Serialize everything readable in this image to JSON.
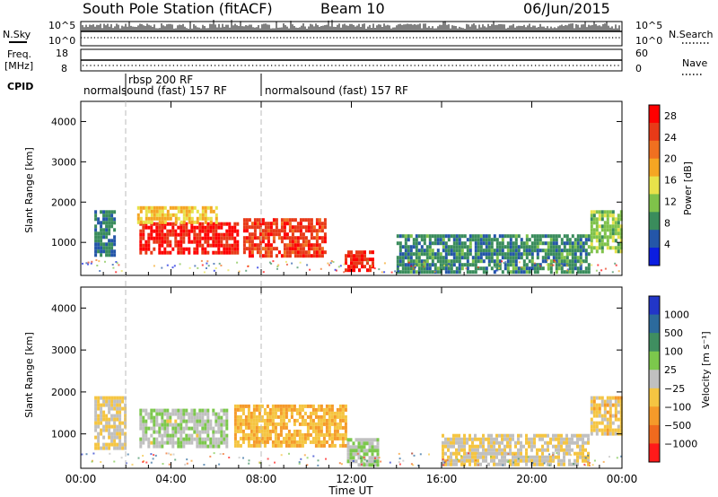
{
  "header": {
    "station": "South Pole Station (fitACF)",
    "beam": "Beam 10",
    "date": "06/Jun/2015"
  },
  "top_panels": {
    "nsky_label": "N.Sky",
    "nsearch_label": "N.Search",
    "nsky_ticks": [
      "10^5",
      "10^0"
    ],
    "nsky_right_ticks": [
      "10^5",
      "10^0"
    ],
    "freq_label_lines": [
      "Freq.",
      "[MHz]"
    ],
    "freq_ticks": [
      "18",
      "8"
    ],
    "nave_label": "Nave",
    "nave_ticks": [
      "60",
      "0"
    ],
    "cpid_label": "CPID",
    "cpid_entries": [
      {
        "text": "normalsound (fast) 157 RF",
        "start_hour": 0
      },
      {
        "text": "rbsp 200 RF",
        "start_hour": 2
      },
      {
        "text": "normalsound (fast) 157 RF",
        "start_hour": 8
      }
    ]
  },
  "time_axis": {
    "ticks": [
      "00:00",
      "04:00",
      "08:00",
      "12:00",
      "16:00",
      "20:00",
      "00:00"
    ],
    "label": "Time UT"
  },
  "colors": {
    "power": [
      "#0b1de0",
      "#2456a8",
      "#3a8c5c",
      "#7fc24a",
      "#e8e24a",
      "#f5a623",
      "#f07020",
      "#e83a18",
      "#ff0000"
    ],
    "velocity": [
      "#2236c8",
      "#2c6a9c",
      "#3f8e60",
      "#7cc84c",
      "#c0c0c0",
      "#f5c542",
      "#f59a2a",
      "#f06a1e",
      "#ff1a1a"
    ]
  },
  "chart_data": [
    {
      "type": "heatmap",
      "panel": "power",
      "ylabel": "Slant Range [km]",
      "yticks": [
        "1000",
        "2000",
        "3000",
        "4000"
      ],
      "ylim": [
        180,
        4500
      ],
      "xlim": [
        0,
        24
      ],
      "colorbar_label": "Power [dB]",
      "colorbar_ticks": [
        "4",
        "8",
        "12",
        "16",
        "20",
        "24",
        "28"
      ],
      "colorbar_range": [
        0,
        30
      ],
      "regions": [
        {
          "x": [
            2.6,
            7.0
          ],
          "y": [
            700,
            1500
          ],
          "value": 27
        },
        {
          "x": [
            7.2,
            10.8
          ],
          "y": [
            700,
            1600
          ],
          "value": 25
        },
        {
          "x": [
            2.5,
            6.0
          ],
          "y": [
            1500,
            1900
          ],
          "value": 17
        },
        {
          "x": [
            11.7,
            12.9
          ],
          "y": [
            300,
            800
          ],
          "value": 26
        },
        {
          "x": [
            14.0,
            22.5
          ],
          "y": [
            300,
            1200
          ],
          "value": 8
        },
        {
          "x": [
            22.6,
            24.0
          ],
          "y": [
            800,
            1800
          ],
          "value": 12
        },
        {
          "x": [
            0.6,
            1.5
          ],
          "y": [
            700,
            1800
          ],
          "value": 7
        }
      ]
    },
    {
      "type": "heatmap",
      "panel": "velocity",
      "ylabel": "Slant Range [km]",
      "yticks": [
        "1000",
        "2000",
        "3000",
        "4000"
      ],
      "ylim": [
        180,
        4500
      ],
      "xlim": [
        0,
        24
      ],
      "colorbar_label": "Velocity [m s⁻¹]",
      "colorbar_ticks": [
        "1000",
        "500",
        "100",
        "25",
        "−25",
        "−100",
        "−500",
        "−1000"
      ],
      "colorbar_range": [
        -1000,
        1000
      ],
      "regions": [
        {
          "x": [
            2.6,
            6.5
          ],
          "y": [
            700,
            1600
          ],
          "value": 60
        },
        {
          "x": [
            6.8,
            11.8
          ],
          "y": [
            700,
            1700
          ],
          "value": -300
        },
        {
          "x": [
            11.8,
            13.2
          ],
          "y": [
            300,
            900
          ],
          "value": 90
        },
        {
          "x": [
            16.0,
            22.5
          ],
          "y": [
            300,
            1000
          ],
          "value": -80
        },
        {
          "x": [
            22.6,
            24.0
          ],
          "y": [
            1000,
            1900
          ],
          "value": -200
        },
        {
          "x": [
            0.6,
            2.0
          ],
          "y": [
            700,
            1900
          ],
          "value": -120
        }
      ]
    }
  ]
}
